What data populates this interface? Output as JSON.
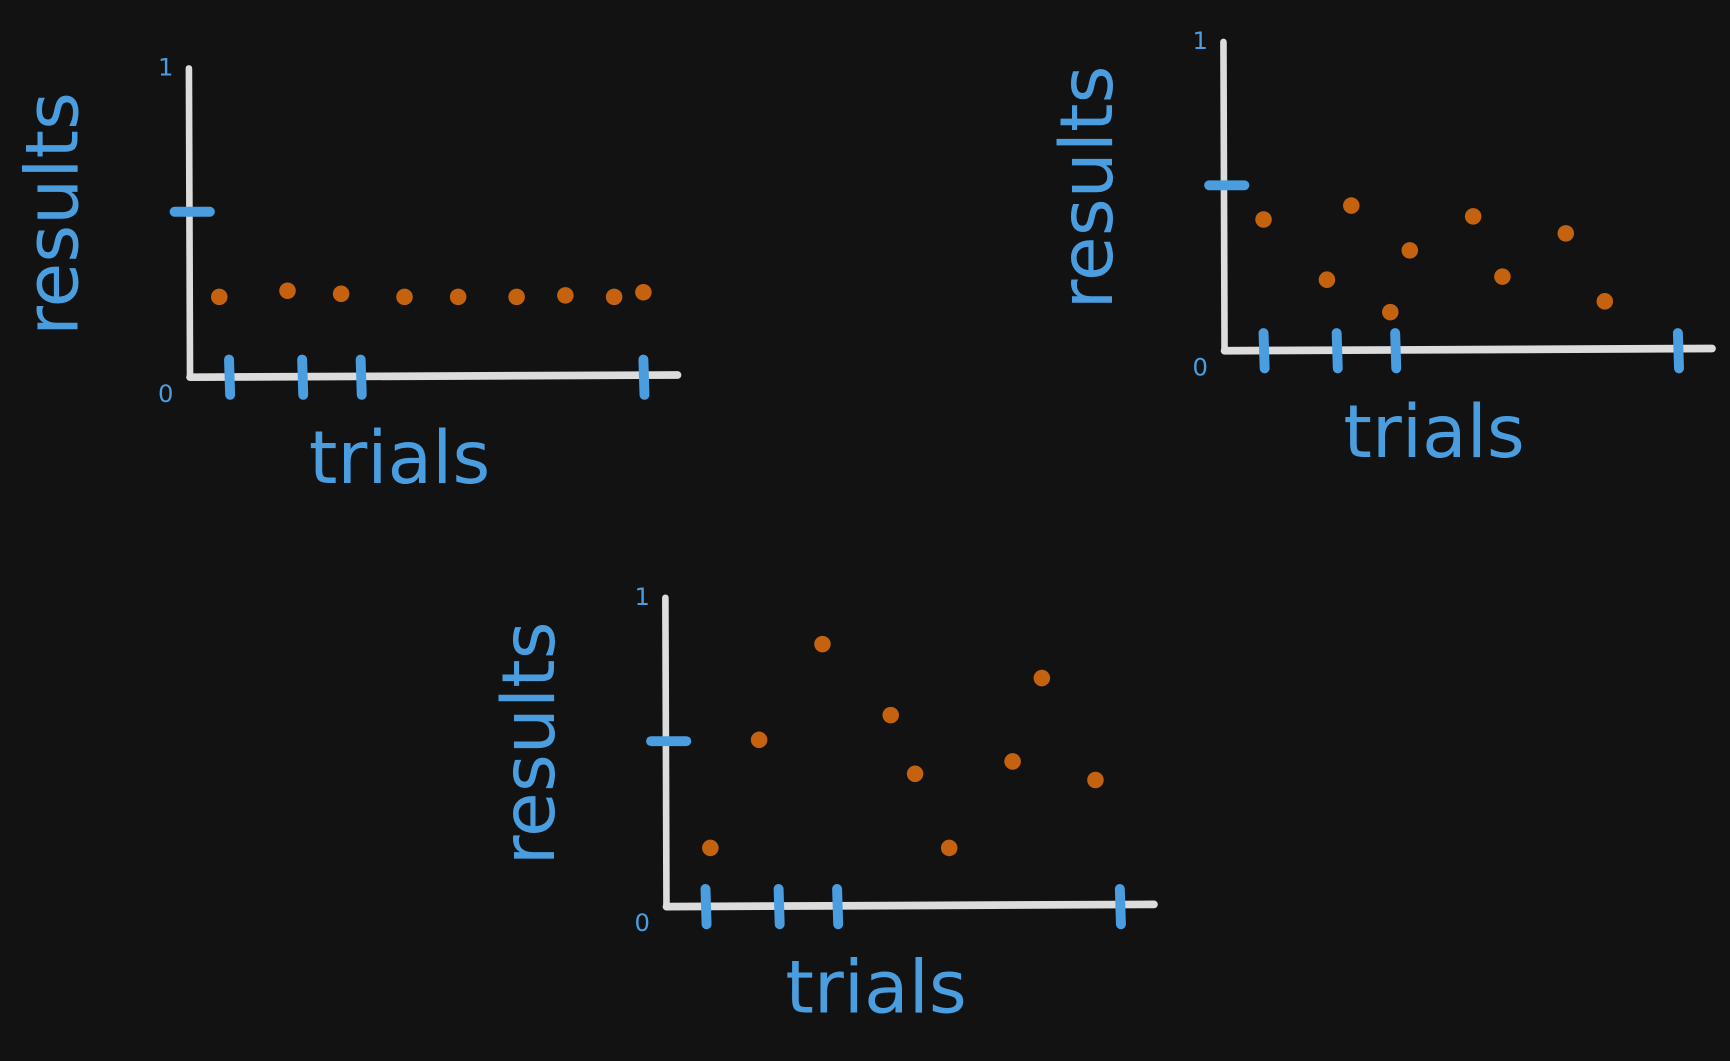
{
  "chart_data": [
    {
      "type": "scatter",
      "x_label": "trials",
      "y_label": "results",
      "color": "#c5620f",
      "xlim": [
        0,
        1
      ],
      "ylim": [
        0,
        1
      ],
      "yticks": [
        0,
        1
      ],
      "x": [
        0.06,
        0.2,
        0.31,
        0.44,
        0.55,
        0.67,
        0.77,
        0.87,
        0.93
      ],
      "values": [
        0.26,
        0.28,
        0.27,
        0.26,
        0.26,
        0.26,
        0.265,
        0.26,
        0.275
      ]
    },
    {
      "type": "scatter",
      "x_label": "trials",
      "y_label": "results",
      "color": "#c5620f",
      "xlim": [
        0,
        1
      ],
      "ylim": [
        0,
        1
      ],
      "yticks": [
        0,
        1
      ],
      "x": [
        0.08,
        0.26,
        0.21,
        0.38,
        0.34,
        0.51,
        0.57,
        0.7,
        0.78
      ],
      "values": [
        0.425,
        0.47,
        0.23,
        0.325,
        0.125,
        0.435,
        0.24,
        0.38,
        0.16
      ]
    },
    {
      "type": "scatter",
      "x_label": "trials",
      "y_label": "results",
      "color": "#c5620f",
      "xlim": [
        0,
        1
      ],
      "ylim": [
        0,
        1
      ],
      "yticks": [
        0,
        1
      ],
      "x": [
        0.09,
        0.19,
        0.32,
        0.46,
        0.51,
        0.58,
        0.71,
        0.77,
        0.88
      ],
      "values": [
        0.19,
        0.54,
        0.85,
        0.62,
        0.43,
        0.19,
        0.47,
        0.74,
        0.41
      ]
    }
  ]
}
